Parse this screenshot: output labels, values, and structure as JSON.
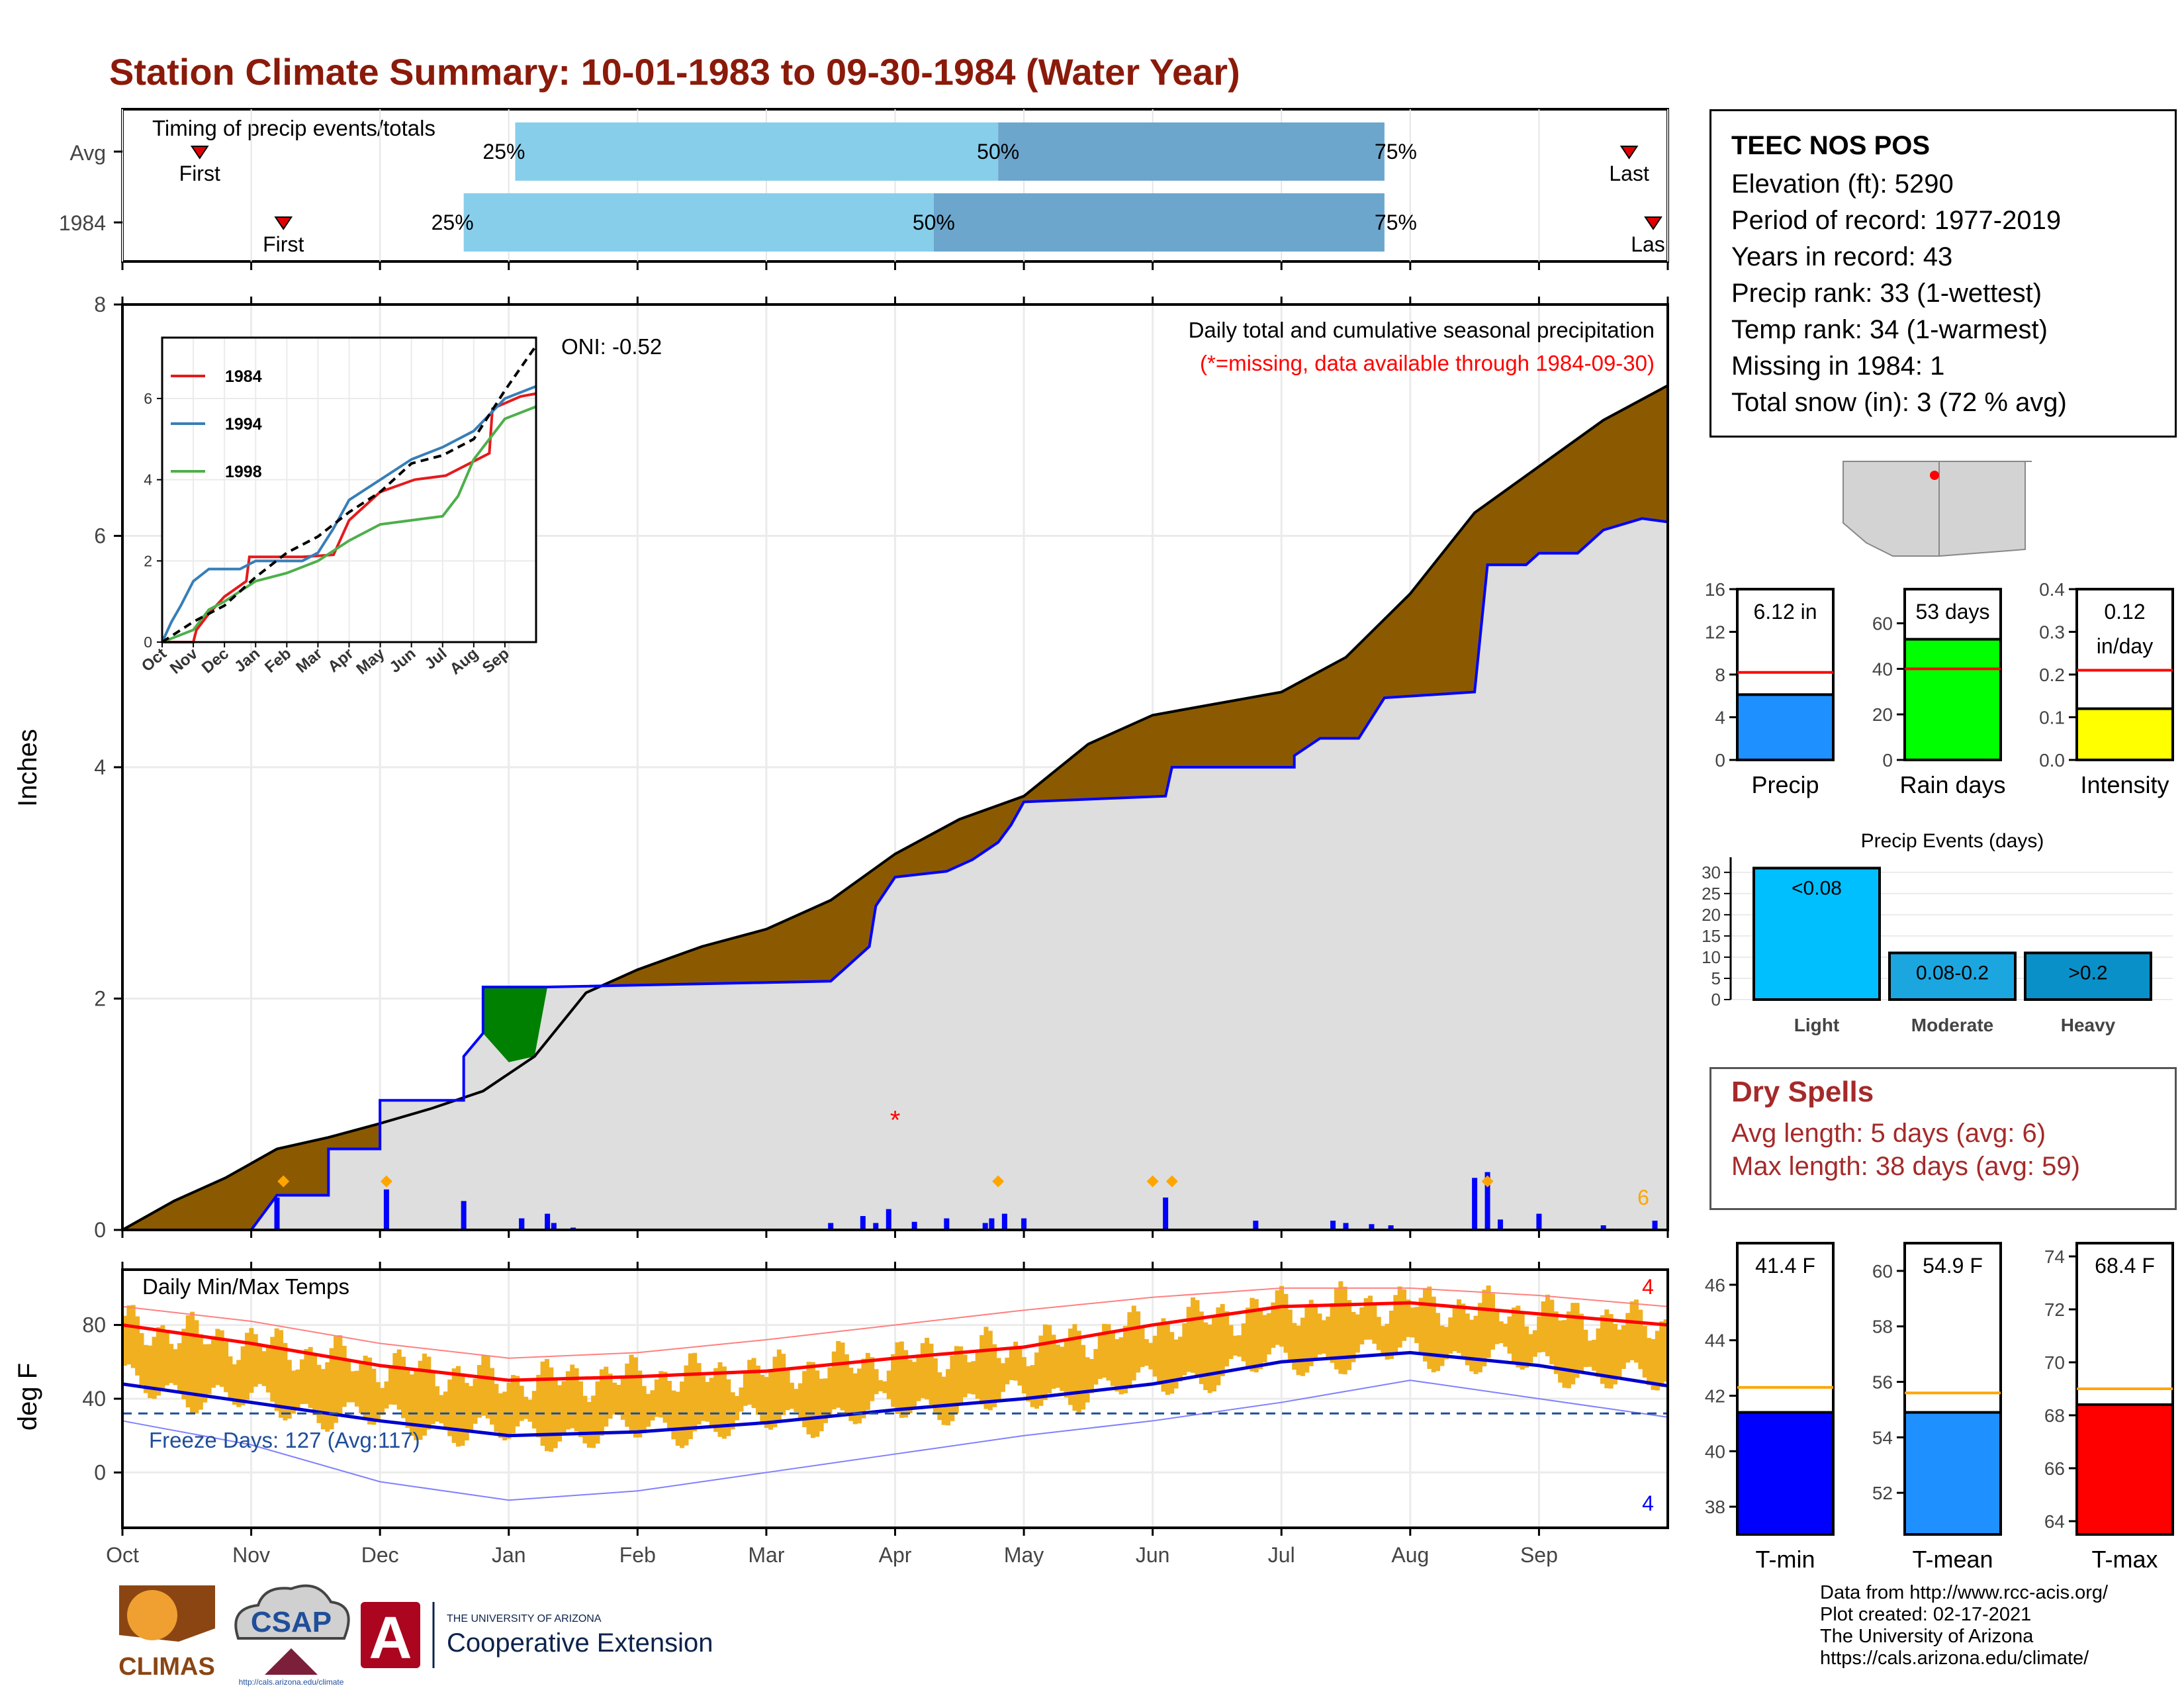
{
  "page": {
    "title": "Station Climate Summary: 10-01-1983 to 09-30-1984 (Water Year)",
    "title_color": "#8B1A0A"
  },
  "station": {
    "name": "TEEC NOS POS",
    "lines": [
      "Elevation (ft): 5290",
      "Period of record: 1977-2019",
      "Years in record: 43",
      "Precip rank: 33 (1-wettest)",
      "Temp rank: 34 (1-warmest)",
      "Missing in 1984: 1",
      "Total snow (in): 3 (72 % avg)"
    ]
  },
  "dry_spells": {
    "title": "Dry Spells",
    "avg_line": "Avg length: 5 days (avg: 6)",
    "max_line": "Max length: 38 days (avg: 59)",
    "color": "#A52A2A"
  },
  "footer": {
    "lines": [
      "Data from http://www.rcc-acis.org/",
      "Plot created: 02-17-2021",
      "The University of Arizona",
      "https://cals.arizona.edu/climate/"
    ],
    "logos": {
      "climas": "CLIMAS",
      "csap": "CSAP",
      "csap_url": "http://cals.arizona.edu/climate",
      "ua_small": "THE UNIVERSITY OF ARIZONA",
      "ua_big": "Cooperative Extension",
      "ua_letter": "A"
    }
  },
  "chart_data": [
    {
      "type": "bar",
      "name": "timing",
      "title": "Timing of precip events/totals",
      "rows": [
        {
          "label": "Avg",
          "first": "First",
          "last": "Last",
          "first_month": 0.6,
          "last_month": 11.7,
          "p25": 3.05,
          "p50": 6.8,
          "p75": 9.8
        },
        {
          "label": "1984",
          "first": "First",
          "last": "Las",
          "first_month": 1.25,
          "last_month": 12.0,
          "p25": 2.65,
          "p50": 6.3,
          "p75": 9.8
        }
      ],
      "pct_labels": [
        "25%",
        "50%",
        "75%"
      ],
      "colors": {
        "light": "#87CEEB",
        "dark": "#6CA6CD",
        "marker": "#E00000"
      }
    },
    {
      "type": "area",
      "name": "precipitation",
      "ylabel": "Inches",
      "ylim": [
        0,
        8
      ],
      "yticks": [
        0,
        2,
        4,
        6,
        8
      ],
      "x_months": [
        "Oct",
        "Nov",
        "Dec",
        "Jan",
        "Feb",
        "Mar",
        "Apr",
        "May",
        "Jun",
        "Jul",
        "Aug",
        "Sep"
      ],
      "annotation_title": "Daily total and cumulative seasonal precipitation",
      "annotation_missing": "(*=missing, data available through 1984-09-30)",
      "oni": "ONI: -0.52",
      "corner_count": "6",
      "missing_marker": {
        "month": 6.0,
        "value": 1.0
      },
      "avg_cumulative": [
        [
          0,
          0
        ],
        [
          0.4,
          0.25
        ],
        [
          0.8,
          0.45
        ],
        [
          1.2,
          0.7
        ],
        [
          1.6,
          0.8
        ],
        [
          2.0,
          0.92
        ],
        [
          2.4,
          1.05
        ],
        [
          2.8,
          1.2
        ],
        [
          3.2,
          1.5
        ],
        [
          3.6,
          2.05
        ],
        [
          4.0,
          2.25
        ],
        [
          4.5,
          2.45
        ],
        [
          5.0,
          2.6
        ],
        [
          5.5,
          2.85
        ],
        [
          6.0,
          3.25
        ],
        [
          6.5,
          3.55
        ],
        [
          7.0,
          3.75
        ],
        [
          7.5,
          4.2
        ],
        [
          8.0,
          4.45
        ],
        [
          8.5,
          4.55
        ],
        [
          9.0,
          4.65
        ],
        [
          9.5,
          4.95
        ],
        [
          10.0,
          5.5
        ],
        [
          10.5,
          6.2
        ],
        [
          11.0,
          6.6
        ],
        [
          11.5,
          7.0
        ],
        [
          12.0,
          7.3
        ]
      ],
      "cumulative_1984": [
        [
          0,
          0
        ],
        [
          1.0,
          0
        ],
        [
          1.2,
          0.3
        ],
        [
          1.6,
          0.3
        ],
        [
          1.6,
          0.7
        ],
        [
          2.0,
          0.7
        ],
        [
          2.0,
          1.12
        ],
        [
          2.65,
          1.12
        ],
        [
          2.65,
          1.5
        ],
        [
          2.8,
          1.7
        ],
        [
          2.8,
          2.1
        ],
        [
          3.3,
          2.1
        ],
        [
          5.5,
          2.15
        ],
        [
          5.8,
          2.45
        ],
        [
          5.85,
          2.8
        ],
        [
          6.0,
          3.05
        ],
        [
          6.4,
          3.1
        ],
        [
          6.6,
          3.2
        ],
        [
          6.8,
          3.35
        ],
        [
          6.9,
          3.5
        ],
        [
          7.0,
          3.7
        ],
        [
          8.1,
          3.75
        ],
        [
          8.15,
          4.0
        ],
        [
          9.1,
          4.0
        ],
        [
          9.1,
          4.1
        ],
        [
          9.3,
          4.25
        ],
        [
          9.6,
          4.25
        ],
        [
          9.8,
          4.6
        ],
        [
          10.5,
          4.65
        ],
        [
          10.6,
          5.75
        ],
        [
          10.9,
          5.75
        ],
        [
          11.0,
          5.85
        ],
        [
          11.3,
          5.85
        ],
        [
          11.5,
          6.05
        ],
        [
          11.8,
          6.15
        ],
        [
          12.0,
          6.12
        ]
      ],
      "daily_bars": [
        [
          1.2,
          0.28
        ],
        [
          2.05,
          0.35
        ],
        [
          2.65,
          0.25
        ],
        [
          3.1,
          0.1
        ],
        [
          3.1,
          0.1
        ],
        [
          3.3,
          0.14
        ],
        [
          3.35,
          0.06
        ],
        [
          3.5,
          0.02
        ],
        [
          5.5,
          0.06
        ],
        [
          5.75,
          0.12
        ],
        [
          5.85,
          0.06
        ],
        [
          5.95,
          0.18
        ],
        [
          6.15,
          0.07
        ],
        [
          6.4,
          0.1
        ],
        [
          6.7,
          0.06
        ],
        [
          6.75,
          0.1
        ],
        [
          6.85,
          0.14
        ],
        [
          7.0,
          0.1
        ],
        [
          8.1,
          0.28
        ],
        [
          8.8,
          0.08
        ],
        [
          9.4,
          0.08
        ],
        [
          9.5,
          0.06
        ],
        [
          9.7,
          0.05
        ],
        [
          9.85,
          0.04
        ],
        [
          10.5,
          0.45
        ],
        [
          10.6,
          0.5
        ],
        [
          10.7,
          0.09
        ],
        [
          11.0,
          0.14
        ],
        [
          11.5,
          0.04
        ],
        [
          11.9,
          0.08
        ]
      ],
      "event_markers": [
        1.25,
        2.05,
        6.8,
        8.15,
        10.6,
        8.0
      ]
    },
    {
      "type": "line",
      "name": "temperature",
      "title": "Daily Min/Max Temps",
      "ylabel": "deg F",
      "ylim": [
        -30,
        110
      ],
      "yticks": [
        0,
        40,
        80
      ],
      "freeze_label": "Freeze Days: 127 (Avg:117)",
      "freeze_line": 32,
      "max_count": "4",
      "min_count": "4",
      "tmax_avg": [
        [
          0,
          80
        ],
        [
          1,
          70
        ],
        [
          2,
          58
        ],
        [
          3,
          50
        ],
        [
          4,
          52
        ],
        [
          5,
          55
        ],
        [
          6,
          62
        ],
        [
          7,
          68
        ],
        [
          8,
          80
        ],
        [
          9,
          90
        ],
        [
          10,
          92
        ],
        [
          11,
          86
        ],
        [
          12,
          80
        ]
      ],
      "tmin_avg": [
        [
          0,
          48
        ],
        [
          1,
          38
        ],
        [
          2,
          28
        ],
        [
          3,
          20
        ],
        [
          4,
          22
        ],
        [
          5,
          27
        ],
        [
          6,
          34
        ],
        [
          7,
          40
        ],
        [
          8,
          48
        ],
        [
          9,
          60
        ],
        [
          10,
          65
        ],
        [
          11,
          58
        ],
        [
          12,
          47
        ]
      ],
      "record_high": [
        [
          0,
          90
        ],
        [
          1,
          82
        ],
        [
          2,
          70
        ],
        [
          3,
          62
        ],
        [
          4,
          65
        ],
        [
          5,
          72
        ],
        [
          6,
          80
        ],
        [
          7,
          88
        ],
        [
          8,
          95
        ],
        [
          9,
          100
        ],
        [
          10,
          100
        ],
        [
          11,
          96
        ],
        [
          12,
          90
        ]
      ],
      "record_low": [
        [
          0,
          28
        ],
        [
          1,
          15
        ],
        [
          2,
          -5
        ],
        [
          3,
          -15
        ],
        [
          4,
          -10
        ],
        [
          5,
          0
        ],
        [
          6,
          10
        ],
        [
          7,
          20
        ],
        [
          8,
          28
        ],
        [
          9,
          38
        ],
        [
          10,
          50
        ],
        [
          11,
          40
        ],
        [
          12,
          30
        ]
      ],
      "bar_color": "#F0B020"
    },
    {
      "type": "bar",
      "name": "summary_precip",
      "panels": [
        {
          "label": "Precip",
          "value": 6.12,
          "text": "6.12 in",
          "avg": 8.2,
          "ylim": [
            0,
            16
          ],
          "yticks": [
            0,
            4,
            8,
            12,
            16
          ],
          "color": "#1E90FF"
        },
        {
          "label": "Rain days",
          "value": 53,
          "text": "53 days",
          "avg": 40,
          "ylim": [
            0,
            75
          ],
          "yticks": [
            0,
            20,
            40,
            60
          ],
          "color": "#00FF00"
        },
        {
          "label": "Intensity",
          "value": 0.12,
          "text": "0.12\nin/day",
          "text1": "0.12",
          "text2": "in/day",
          "avg": 0.21,
          "ylim": [
            0,
            0.4
          ],
          "yticks": [
            0.0,
            0.1,
            0.2,
            0.3,
            0.4
          ],
          "color": "#FFFF00"
        }
      ]
    },
    {
      "type": "bar",
      "name": "precip_events",
      "title": "Precip Events (days)",
      "categories": [
        "Light",
        "Moderate",
        "Heavy"
      ],
      "bar_labels": [
        "<0.08",
        "0.08-0.2",
        ">0.2"
      ],
      "values": [
        31,
        11,
        11
      ],
      "ylim": [
        0,
        32
      ],
      "yticks": [
        0,
        5,
        10,
        15,
        20,
        25,
        30
      ],
      "colors": [
        "#00BFFF",
        "#1CA6E0",
        "#0A90C8"
      ]
    },
    {
      "type": "bar",
      "name": "summary_temp",
      "panels": [
        {
          "label": "T-min",
          "value": 41.4,
          "text": "41.4 F",
          "avg": 42.3,
          "ylim": [
            37,
            47.5
          ],
          "yticks": [
            38,
            40,
            42,
            44,
            46
          ],
          "color": "#0000FF"
        },
        {
          "label": "T-mean",
          "value": 54.9,
          "text": "54.9 F",
          "avg": 55.6,
          "ylim": [
            50.5,
            61
          ],
          "yticks": [
            52,
            54,
            56,
            58,
            60
          ],
          "color": "#1E90FF"
        },
        {
          "label": "T-max",
          "value": 68.4,
          "text": "68.4 F",
          "avg": 69.0,
          "ylim": [
            63.5,
            74.5
          ],
          "yticks": [
            64,
            66,
            68,
            70,
            72,
            74
          ],
          "color": "#FF0000"
        }
      ]
    },
    {
      "type": "line",
      "name": "inset_cumulative",
      "ylim": [
        0,
        7.5
      ],
      "yticks": [
        0,
        2,
        4,
        6
      ],
      "x_months": [
        "Oct",
        "Nov",
        "Dec",
        "Jan",
        "Feb",
        "Mar",
        "Apr",
        "May",
        "Jun",
        "Jul",
        "Aug",
        "Sep"
      ],
      "series": [
        {
          "name": "1984",
          "color": "#E41A1C",
          "points": [
            [
              0,
              0
            ],
            [
              1.0,
              0
            ],
            [
              1.1,
              0.3
            ],
            [
              1.5,
              0.7
            ],
            [
              2.0,
              1.12
            ],
            [
              2.7,
              1.5
            ],
            [
              2.8,
              2.1
            ],
            [
              4.5,
              2.1
            ],
            [
              5.5,
              2.15
            ],
            [
              6.0,
              3.0
            ],
            [
              7.0,
              3.7
            ],
            [
              8.1,
              4.0
            ],
            [
              9.1,
              4.1
            ],
            [
              10.5,
              4.65
            ],
            [
              10.6,
              5.75
            ],
            [
              11.5,
              6.05
            ],
            [
              12,
              6.12
            ]
          ]
        },
        {
          "name": "1994",
          "color": "#377EB8",
          "points": [
            [
              0,
              0
            ],
            [
              0.3,
              0.5
            ],
            [
              0.6,
              0.9
            ],
            [
              1.0,
              1.5
            ],
            [
              1.5,
              1.8
            ],
            [
              2.5,
              1.8
            ],
            [
              3.0,
              2.0
            ],
            [
              4.5,
              2.0
            ],
            [
              5.0,
              2.2
            ],
            [
              5.5,
              2.8
            ],
            [
              6.0,
              3.5
            ],
            [
              7.0,
              4.0
            ],
            [
              8.0,
              4.5
            ],
            [
              9.0,
              4.8
            ],
            [
              10.0,
              5.2
            ],
            [
              11.0,
              6.0
            ],
            [
              12,
              6.3
            ]
          ]
        },
        {
          "name": "1998",
          "color": "#4DAF4A",
          "points": [
            [
              0,
              0
            ],
            [
              1.0,
              0.3
            ],
            [
              1.5,
              0.8
            ],
            [
              2.0,
              1.0
            ],
            [
              3.0,
              1.5
            ],
            [
              4.0,
              1.7
            ],
            [
              5.0,
              2.0
            ],
            [
              6.0,
              2.5
            ],
            [
              7.0,
              2.9
            ],
            [
              8.0,
              3.0
            ],
            [
              9.0,
              3.1
            ],
            [
              9.5,
              3.6
            ],
            [
              10.0,
              4.5
            ],
            [
              11.0,
              5.5
            ],
            [
              12,
              5.8
            ]
          ]
        },
        {
          "name": "avg",
          "color": "#000000",
          "points": [
            [
              0,
              0
            ],
            [
              1,
              0.5
            ],
            [
              2,
              0.9
            ],
            [
              3,
              1.6
            ],
            [
              4,
              2.2
            ],
            [
              5,
              2.6
            ],
            [
              6,
              3.2
            ],
            [
              7,
              3.7
            ],
            [
              8,
              4.4
            ],
            [
              9,
              4.6
            ],
            [
              10,
              5.0
            ],
            [
              11,
              6.2
            ],
            [
              12,
              7.3
            ]
          ]
        }
      ]
    }
  ]
}
